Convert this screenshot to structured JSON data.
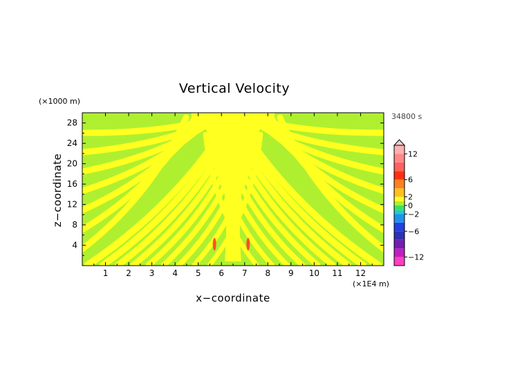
{
  "chart_data": {
    "type": "heatmap",
    "title": "Vertical Velocity",
    "xlabel": "x−coordinate",
    "ylabel": "z−coordinate",
    "x_unit": "(×1E4 m)",
    "y_unit": "(×1000 m)",
    "time_label": "34800 s",
    "xlim": [
      0,
      13
    ],
    "ylim": [
      0,
      30
    ],
    "x_ticks": [
      "1",
      "2",
      "3",
      "4",
      "5",
      "6",
      "7",
      "8",
      "9",
      "10",
      "11",
      "12"
    ],
    "y_ticks": [
      "4",
      "8",
      "12",
      "16",
      "20",
      "24",
      "28"
    ],
    "colorbar": {
      "tick_labels": [
        "12",
        "6",
        "2",
        "0",
        "−2",
        "−6",
        "−12"
      ],
      "tick_values": [
        12,
        6,
        2,
        0,
        -2,
        -6,
        -12
      ],
      "range": [
        -14,
        14
      ],
      "extend": "max"
    },
    "colors": {
      "background_field": "#aef030",
      "positive_band": "#ffff20",
      "peak": "#ff5020"
    }
  }
}
